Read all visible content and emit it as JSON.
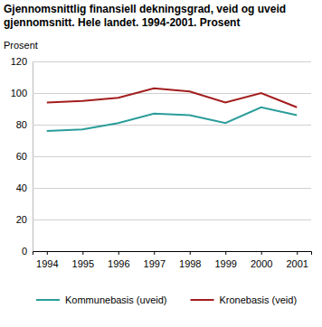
{
  "chart_data": {
    "type": "line",
    "title": "Gjennomsnittlig finansiell dekningsgrad, veid og uveid gjennomsnitt. Hele landet. 1994-2001. Prosent",
    "y_label": "Prosent",
    "categories": [
      "1994",
      "1995",
      "1996",
      "1997",
      "1998",
      "1999",
      "2000",
      "2001"
    ],
    "series": [
      {
        "name": "Kommunebasis (uveid)",
        "color": "#2a9d9a",
        "values": [
          76,
          77,
          81,
          87,
          86,
          81,
          91,
          86
        ]
      },
      {
        "name": "Kronebasis (veid)",
        "color": "#a31d1d",
        "values": [
          94,
          95,
          97,
          103,
          101,
          94,
          100,
          91
        ]
      }
    ],
    "ylim": [
      0,
      120
    ],
    "yticks": [
      0,
      20,
      40,
      60,
      80,
      100,
      120
    ],
    "grid": true,
    "legend": "bottom"
  }
}
